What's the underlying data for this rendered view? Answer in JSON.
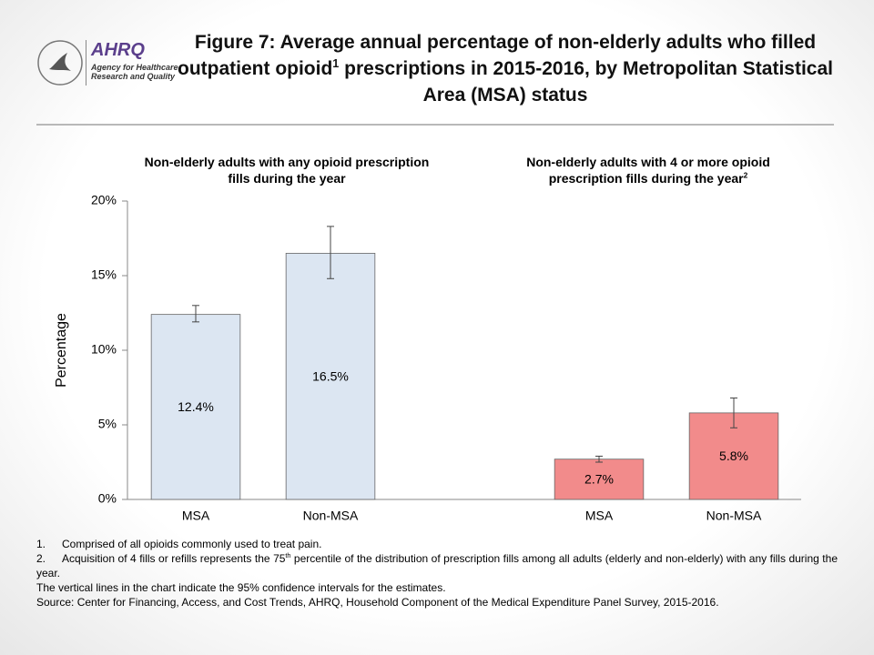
{
  "header": {
    "title": [
      "Figure 7: Average annual percentage of non-elderly adults who filled outpatient opioid",
      "1",
      " prescriptions in 2015-2016, by Metropolitan Statistical Area (MSA) status"
    ],
    "logo": {
      "name": "AHRQ",
      "text": "Agency for Healthcare Research and Quality"
    }
  },
  "chart_data": [
    {
      "type": "bar",
      "subtitle": "Non-elderly adults with any opioid prescription fills during the year",
      "ylabel": "Percentage",
      "categories": [
        "MSA",
        "Non-MSA"
      ],
      "values": [
        12.4,
        16.5
      ],
      "value_labels": [
        "12.4%",
        "16.5%"
      ],
      "ci_low": [
        11.9,
        14.8
      ],
      "ci_high": [
        13.0,
        18.3
      ],
      "color": "#dce6f2",
      "ylim": [
        0,
        20
      ],
      "yticks": [
        {
          "value": 0,
          "label": "0%"
        },
        {
          "value": 5,
          "label": "5%"
        },
        {
          "value": 10,
          "label": "10%"
        },
        {
          "value": 15,
          "label": "15%"
        },
        {
          "value": 20,
          "label": "20%"
        }
      ]
    },
    {
      "type": "bar",
      "subtitle": "Non-elderly adults with 4 or more opioid prescription fills during the year",
      "subtitle_sup": "2",
      "categories": [
        "MSA",
        "Non-MSA"
      ],
      "values": [
        2.7,
        5.8
      ],
      "value_labels": [
        "2.7%",
        "5.8%"
      ],
      "ci_low": [
        2.5,
        4.8
      ],
      "ci_high": [
        2.9,
        6.8
      ],
      "color": "#f28b8b",
      "ylim": [
        0,
        20
      ]
    }
  ],
  "footnotes": [
    {
      "number": "1.",
      "parts": [
        "Comprised of all opioids commonly used to treat pain."
      ]
    },
    {
      "number": "2.",
      "parts": [
        "Acquisition of 4 fills or refills represents the 75",
        "th",
        " percentile of the distribution of prescription fills among all adults (elderly and non-elderly) with any fills during the year."
      ]
    }
  ],
  "notes": [
    "The vertical lines in the chart indicate the 95% confidence intervals for the estimates.",
    "Source: Center for Financing, Access, and Cost Trends, AHRQ, Household Component of the Medical Expenditure Panel Survey, 2015-2016."
  ]
}
